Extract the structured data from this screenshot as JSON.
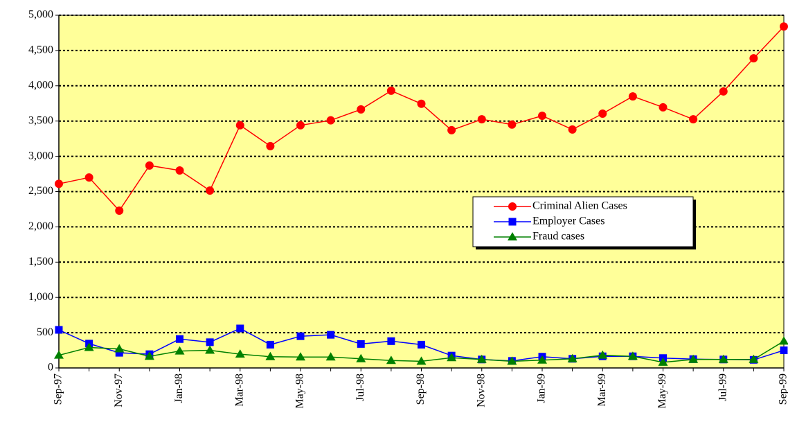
{
  "chart_data": {
    "type": "line",
    "categories": [
      "Sep-97",
      null,
      "Nov-97",
      null,
      "Jan-98",
      null,
      "Mar-98",
      null,
      "May-98",
      null,
      "Jul-98",
      null,
      "Sep-98",
      null,
      "Nov-98",
      null,
      "Jan-99",
      null,
      "Mar-99",
      null,
      "May-99",
      null,
      "Jul-99",
      null,
      "Sep-99"
    ],
    "series": [
      {
        "name": "Criminal Alien Cases",
        "color": "#ff0000",
        "marker": "circle",
        "values": [
          2610,
          2700,
          2230,
          2870,
          2800,
          2515,
          3440,
          3145,
          3440,
          3510,
          3665,
          3930,
          3745,
          3370,
          3525,
          3450,
          3575,
          3380,
          3605,
          3850,
          3695,
          3525,
          3920,
          4390,
          4840
        ]
      },
      {
        "name": "Employer Cases",
        "color": "#0000ff",
        "marker": "square",
        "values": [
          540,
          345,
          215,
          195,
          410,
          365,
          560,
          330,
          450,
          470,
          340,
          380,
          330,
          175,
          120,
          100,
          160,
          130,
          165,
          165,
          140,
          125,
          120,
          115,
          250
        ]
      },
      {
        "name": "Fraud cases",
        "color": "#008000",
        "marker": "triangle",
        "values": [
          180,
          290,
          270,
          165,
          240,
          250,
          195,
          160,
          155,
          155,
          130,
          105,
          95,
          145,
          120,
          95,
          110,
          130,
          180,
          165,
          80,
          120,
          120,
          120,
          380
        ]
      }
    ],
    "ylim": [
      0,
      5000
    ],
    "yticks": [
      0,
      500,
      {
        "value": 1000,
        "label": "1,000"
      },
      {
        "value": 1500,
        "label": "1,500"
      },
      {
        "value": 2000,
        "label": "2,000"
      },
      {
        "value": 2500,
        "label": "2,500"
      },
      {
        "value": 3000,
        "label": "3,000"
      },
      {
        "value": 3500,
        "label": "3,500"
      },
      {
        "value": 4000,
        "label": "4,000"
      },
      {
        "value": 4500,
        "label": "4,500"
      },
      {
        "value": 5000,
        "label": "5,000"
      }
    ],
    "grid": true,
    "background": "#ffff99"
  }
}
